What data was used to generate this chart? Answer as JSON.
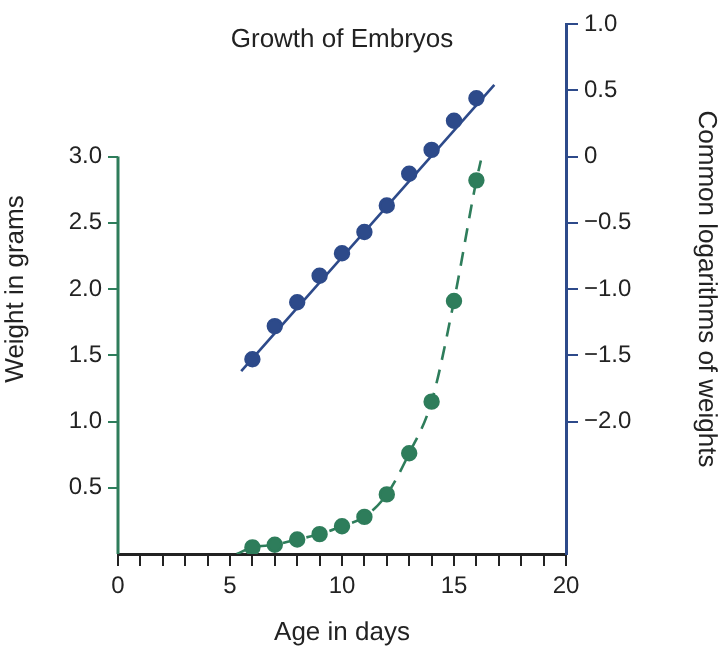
{
  "chart_data": {
    "type": "scatter",
    "title": "Growth of Embryos",
    "xlabel": "Age in days",
    "ylabel": "Weight in grams",
    "y2label": "Common logarithms of weights",
    "xlim": [
      0,
      20
    ],
    "xticks": [
      0,
      {
        "value": 1,
        "label": null
      },
      {
        "value": 2,
        "label": null
      },
      {
        "value": 3,
        "label": null
      },
      {
        "value": 4,
        "label": null
      },
      5,
      {
        "value": 6,
        "label": null
      },
      {
        "value": 7,
        "label": null
      },
      {
        "value": 8,
        "label": null
      },
      {
        "value": 9,
        "label": null
      },
      10,
      {
        "value": 11,
        "label": null
      },
      {
        "value": 12,
        "label": null
      },
      {
        "value": 13,
        "label": null
      },
      {
        "value": 14,
        "label": null
      },
      15,
      {
        "value": 16,
        "label": null
      },
      {
        "value": 17,
        "label": null
      },
      {
        "value": 18,
        "label": null
      },
      {
        "value": 19,
        "label": null
      },
      20
    ],
    "ylim": [
      0,
      4
    ],
    "yticks": [
      {
        "value": 0.5,
        "label": "0.5"
      },
      {
        "value": 1,
        "label": "1.0"
      },
      {
        "value": 1.5,
        "label": "1.5"
      },
      {
        "value": 2,
        "label": "2.0"
      },
      {
        "value": 2.5,
        "label": "2.5"
      },
      {
        "value": 3,
        "label": "3.0"
      }
    ],
    "y2lim": [
      -3,
      1
    ],
    "y2ticks": [
      {
        "value": -2,
        "label": "−2.0"
      },
      {
        "value": -1.5,
        "label": "−1.5"
      },
      {
        "value": -1,
        "label": "−1.0"
      },
      {
        "value": -0.5,
        "label": "−0.5"
      },
      0,
      {
        "value": 0.5,
        "label": "0.5"
      },
      {
        "value": 1,
        "label": "1.0"
      }
    ],
    "grid": false,
    "legend": false,
    "series": [
      {
        "axis": "y2",
        "color": "#2d4a8a",
        "marker": "circle",
        "x": [
          6,
          7,
          8,
          9,
          10,
          11,
          12,
          13,
          14,
          15,
          16
        ],
        "values": [
          -1.53,
          -1.28,
          -1.1,
          -0.9,
          -0.73,
          -0.57,
          -0.37,
          -0.13,
          0.05,
          0.27,
          0.44
        ]
      },
      {
        "type": "line",
        "axis": "y2",
        "color": "#2d4a8a",
        "marker": "none",
        "line_style": "solid",
        "x": [
          5.5,
          16.8
        ],
        "values": [
          -1.62,
          0.54
        ]
      },
      {
        "axis": "y",
        "color": "#2e7d5b",
        "marker": "circle",
        "x": [
          6,
          7,
          8,
          9,
          10,
          11,
          12,
          13,
          14,
          15,
          16
        ],
        "values": [
          0.05,
          0.07,
          0.11,
          0.15,
          0.21,
          0.28,
          0.45,
          0.76,
          1.15,
          1.91,
          2.82
        ]
      },
      {
        "type": "line",
        "axis": "y",
        "color": "#2e7d5b",
        "marker": "none",
        "line_style": "dashed",
        "x": [
          5.3,
          6,
          7,
          8,
          9,
          10,
          11,
          12,
          13,
          14,
          15,
          16,
          16.2
        ],
        "values": [
          0,
          0.05,
          0.07,
          0.11,
          0.15,
          0.21,
          0.28,
          0.45,
          0.76,
          1.15,
          1.91,
          2.82,
          2.97
        ]
      }
    ]
  }
}
